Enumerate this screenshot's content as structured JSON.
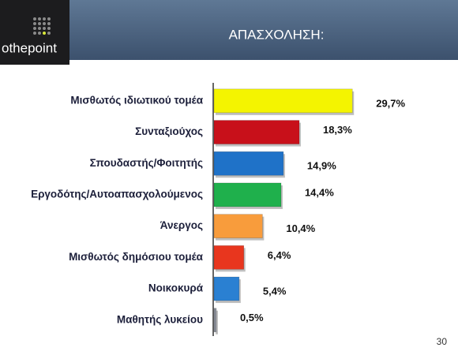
{
  "logo": "othepoint",
  "page_number": "30",
  "chart_data": {
    "type": "bar",
    "orientation": "horizontal",
    "title": "ΑΠΑΣΧΟΛΗΣΗ:",
    "categories": [
      "Μισθωτός ιδιωτικού τομέα",
      "Συνταξιούχος",
      "Σπουδαστής/Φοιτητής",
      "Εργοδότης/Αυτοαπασχολούμενος",
      "Άνεργος",
      "Μισθωτός δημόσιου τομέα",
      "Νοικοκυρά",
      "Μαθητής λυκείου"
    ],
    "values": [
      29.7,
      18.3,
      14.9,
      14.4,
      10.4,
      6.4,
      5.4,
      0.5
    ],
    "value_labels": [
      "29,7%",
      "18,3%",
      "14,9%",
      "14,4%",
      "10,4%",
      "6,4%",
      "5,4%",
      "0,5%"
    ],
    "colors": [
      "#f4f400",
      "#c8101a",
      "#1f72c8",
      "#1fb04c",
      "#f89c3c",
      "#e8361e",
      "#2a80d2",
      "#8a8f99"
    ]
  }
}
